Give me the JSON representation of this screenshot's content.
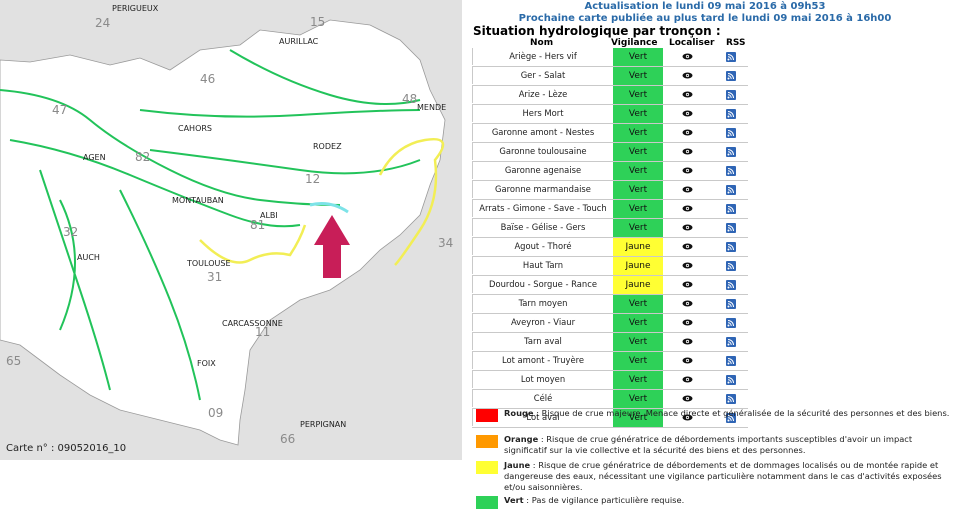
{
  "header": {
    "update": "Actualisation le lundi 09 mai 2016 à 09h53",
    "next": "Prochaine carte publiée au plus tard le lundi 09 mai 2016 à 16h00"
  },
  "situation_title": "Situation hydrologique par tronçon :",
  "table": {
    "columns": [
      "Nom",
      "Vigilance",
      "Localiser",
      "RSS"
    ],
    "rows": [
      {
        "name": "Ariège - Hers vif",
        "level": "Vert"
      },
      {
        "name": "Ger - Salat",
        "level": "Vert"
      },
      {
        "name": "Arize - Lèze",
        "level": "Vert"
      },
      {
        "name": "Hers Mort",
        "level": "Vert"
      },
      {
        "name": "Garonne amont - Nestes",
        "level": "Vert"
      },
      {
        "name": "Garonne toulousaine",
        "level": "Vert"
      },
      {
        "name": "Garonne agenaise",
        "level": "Vert"
      },
      {
        "name": "Garonne marmandaise",
        "level": "Vert"
      },
      {
        "name": "Arrats - Gimone - Save - Touch",
        "level": "Vert"
      },
      {
        "name": "Baïse - Gélise - Gers",
        "level": "Vert"
      },
      {
        "name": "Agout - Thoré",
        "level": "Jaune"
      },
      {
        "name": "Haut Tarn",
        "level": "Jaune"
      },
      {
        "name": "Dourdou - Sorgue - Rance",
        "level": "Jaune"
      },
      {
        "name": "Tarn moyen",
        "level": "Vert"
      },
      {
        "name": "Aveyron - Viaur",
        "level": "Vert"
      },
      {
        "name": "Tarn aval",
        "level": "Vert"
      },
      {
        "name": "Lot amont - Truyère",
        "level": "Vert"
      },
      {
        "name": "Lot moyen",
        "level": "Vert"
      },
      {
        "name": "Célé",
        "level": "Vert"
      },
      {
        "name": "Lot aval",
        "level": "Vert"
      }
    ]
  },
  "colors": {
    "Vert": "#2ed158",
    "Jaune": "#ffff33",
    "Orange": "#ff9900",
    "Rouge": "#ff0000"
  },
  "legend": [
    {
      "key": "Rouge",
      "color": "#ff0000",
      "label": "Rouge",
      "text": " : Risque de crue majeure. Menace directe et généralisée de la sécurité des personnes et des biens."
    },
    {
      "key": "Orange",
      "color": "#ff9900",
      "label": "Orange",
      "text": " : Risque de crue génératrice de débordements importants susceptibles d'avoir un impact significatif sur la vie collective et la sécurité des biens et des personnes."
    },
    {
      "key": "Jaune",
      "color": "#ffff33",
      "label": "Jaune",
      "text": " : Risque de crue génératrice de débordements et de dommages localisés ou de montée rapide et dangereuse des eaux, nécessitant une vigilance particulière notamment dans le cas d'activités exposées et/ou saisonnières."
    },
    {
      "key": "Vert",
      "color": "#2ed158",
      "label": "Vert",
      "text": " : Pas de vigilance particulière requise."
    }
  ],
  "map": {
    "carte": "Carte n° : 09052016_10",
    "cities": [
      "PERIGUEUX",
      "AURILLAC",
      "MENDE",
      "CAHORS",
      "RODEZ",
      "AGEN",
      "MONTAUBAN",
      "ALBI",
      "AUCH",
      "TOULOUSE",
      "CARCASSONNE",
      "FOIX",
      "PERPIGNAN"
    ],
    "departments": [
      "24",
      "15",
      "46",
      "47",
      "48",
      "82",
      "12",
      "32",
      "81",
      "31",
      "11",
      "34",
      "65",
      "09",
      "66"
    ]
  }
}
